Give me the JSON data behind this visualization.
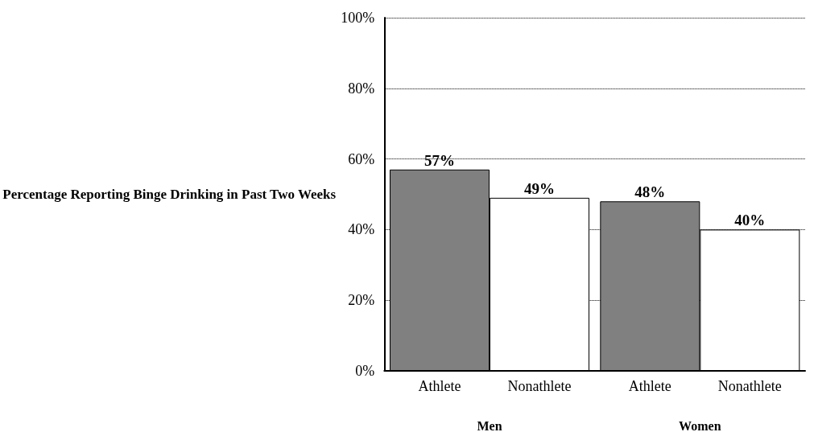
{
  "chart_data": {
    "type": "bar",
    "ylabel": "Percentage Reporting Binge Drinking in Past Two Weeks",
    "categories": [
      "Men",
      "Women"
    ],
    "series": [
      {
        "name": "Athlete",
        "color": "#808080",
        "values": [
          57,
          48
        ],
        "value_labels": [
          "57%",
          "48%"
        ]
      },
      {
        "name": "Nonathlete",
        "color": "#ffffff",
        "values": [
          49,
          40
        ],
        "value_labels": [
          "49%",
          "40%"
        ]
      }
    ],
    "ylim": [
      0,
      100
    ],
    "yticks": [
      {
        "value": 0,
        "label": "0%"
      },
      {
        "value": 20,
        "label": "20%"
      },
      {
        "value": 40,
        "label": "40%"
      },
      {
        "value": 60,
        "label": "60%"
      },
      {
        "value": 80,
        "label": "80%"
      },
      {
        "value": 100,
        "label": "100%"
      }
    ],
    "grid": "y",
    "legend": false
  }
}
